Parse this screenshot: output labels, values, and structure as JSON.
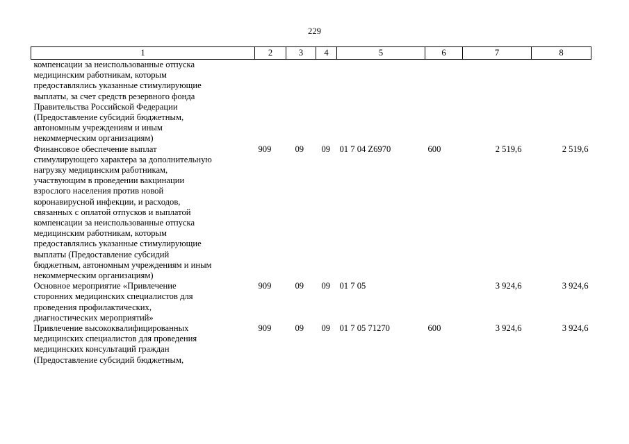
{
  "page": {
    "number": "229"
  },
  "table": {
    "headers": [
      "1",
      "2",
      "3",
      "4",
      "5",
      "6",
      "7",
      "8"
    ],
    "rows": [
      {
        "name": "компенсации за неиспользованные отпуска\nмедицинским работникам, которым\nпредоставлялись указанные стимулирующие\nвыплаты, за счет средств резервного фонда\nПравительства Российской Федерации\n(Предоставление субсидий бюджетным,\nавтономным учреждениям и иным\nнекоммерческим организациям)",
        "admin": "",
        "section": "",
        "subsection": "",
        "target": "",
        "vr": "",
        "amount1": "",
        "amount2": ""
      },
      {
        "name": "Финансовое обеспечение выплат\nстимулирующего характера за дополнительную\nнагрузку медицинским работникам,\nучаствующим в проведении вакцинации\nвзрослого населения против новой\nкоронавирусной инфекции, и расходов,\nсвязанных с оплатой отпусков и выплатой\nкомпенсации за неиспользованные отпуска\nмедицинским работникам, которым\nпредоставлялись указанные стимулирующие\nвыплаты (Предоставление субсидий\nбюджетным, автономным учреждениям и иным\nнекоммерческим организациям)",
        "admin": "909",
        "section": "09",
        "subsection": "09",
        "target": "01 7 04 Z6970",
        "vr": "600",
        "amount1": "2 519,6",
        "amount2": "2 519,6"
      },
      {
        "name": "Основное мероприятие «Привлечение\nсторонних медицинских специалистов для\nпроведения профилактических,\nдиагностических мероприятий»",
        "admin": "909",
        "section": "09",
        "subsection": "09",
        "target": "01 7 05",
        "vr": "",
        "amount1": "3 924,6",
        "amount2": "3 924,6"
      },
      {
        "name": "Привлечение высококвалифицированных\nмедицинских специалистов для проведения\nмедицинских консультаций граждан\n(Предоставление субсидий бюджетным,",
        "admin": "909",
        "section": "09",
        "subsection": "09",
        "target": "01 7 05 71270",
        "vr": "600",
        "amount1": "3 924,6",
        "amount2": "3 924,6"
      }
    ]
  }
}
